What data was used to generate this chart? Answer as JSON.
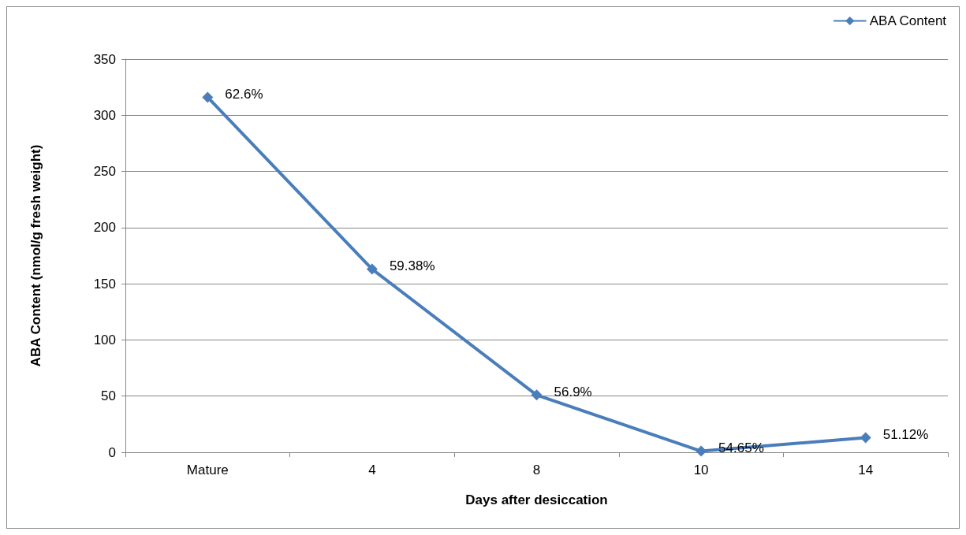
{
  "chart_data": {
    "type": "line",
    "xlabel": "Days after desiccation",
    "ylabel": "ABA Content (nmol/g fresh weight)",
    "categories": [
      "Mature",
      "4",
      "8",
      "10",
      "14"
    ],
    "series": [
      {
        "name": "ABA Content",
        "color": "#4a7ebb",
        "values": [
          316,
          163,
          51,
          1,
          13
        ]
      }
    ],
    "annotations": [
      {
        "text": "62.6%",
        "x": "Mature",
        "y": 316
      },
      {
        "text": "59.38%",
        "x": "4",
        "y": 163
      },
      {
        "text": "56.9%",
        "x": "8",
        "y": 51
      },
      {
        "text": "54.65%",
        "x": "10",
        "y": 1
      },
      {
        "text": "51.12%",
        "x": "14",
        "y": 13
      }
    ],
    "ylim": [
      0,
      350
    ],
    "yticks": [
      0,
      50,
      100,
      150,
      200,
      250,
      300,
      350
    ],
    "grid": "y",
    "legend": "top right",
    "marker": "diamond",
    "line_style": "solid"
  }
}
